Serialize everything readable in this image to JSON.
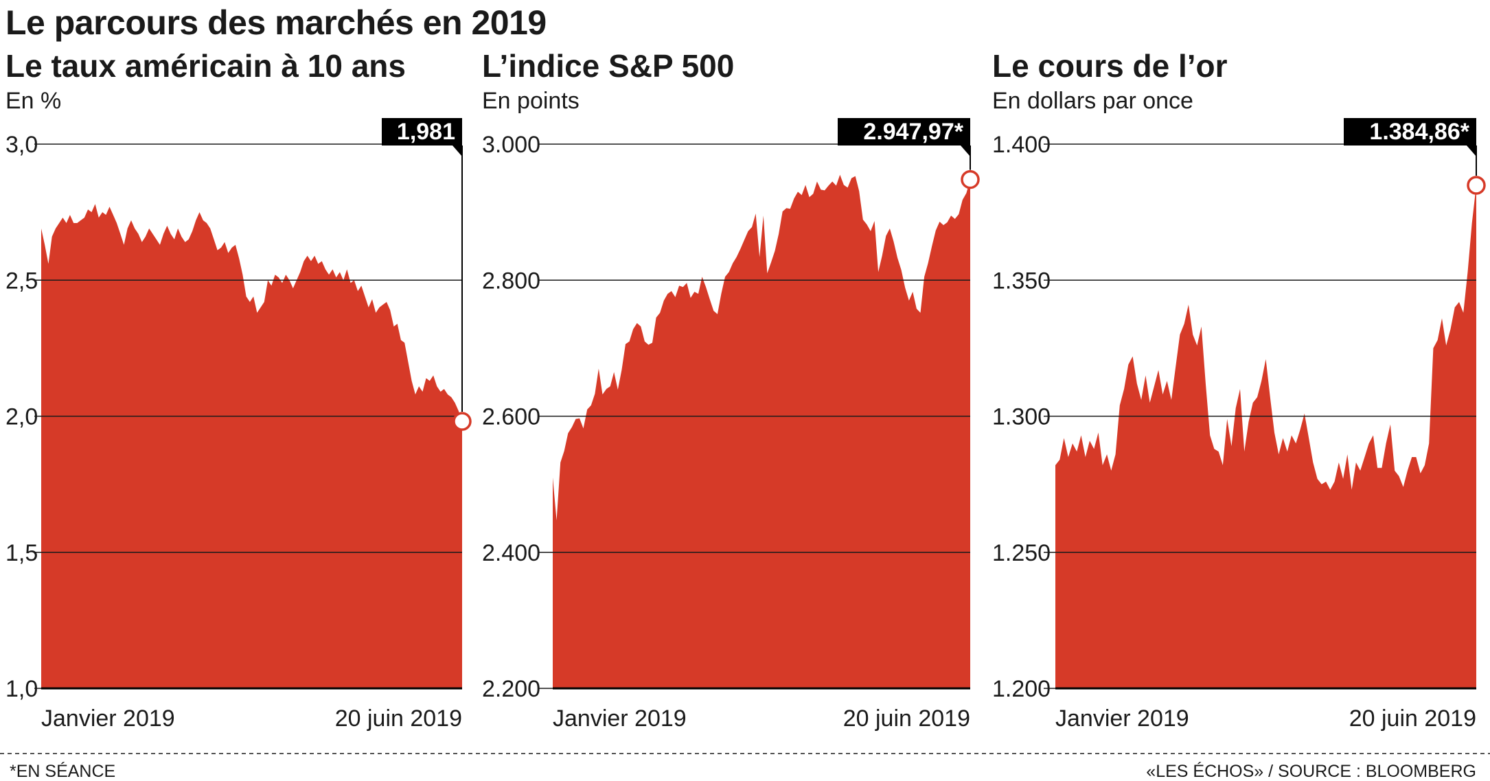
{
  "title": "Le parcours des marchés en 2019",
  "footnote": "*EN SÉANCE",
  "source": "«LES ÉCHOS» / SOURCE : BLOOMBERG",
  "colors": {
    "area": "#d63a28",
    "marker": "#d63a28",
    "badge": "#000000",
    "grid": "#1a1a1a"
  },
  "chart_data": [
    {
      "type": "area",
      "title": "Le taux américain à 10 ans",
      "subtitle": "En %",
      "ylim": [
        1.0,
        3.0
      ],
      "yticks": [
        1.0,
        1.5,
        2.0,
        2.5,
        3.0
      ],
      "ytick_labels": [
        "1,0",
        "1,5",
        "2,0",
        "2,5",
        "3,0"
      ],
      "x_start_label": "Janvier 2019",
      "x_end_label": "20 juin 2019",
      "last_value_label": "1,981",
      "values": [
        2.69,
        2.63,
        2.56,
        2.66,
        2.69,
        2.71,
        2.73,
        2.71,
        2.74,
        2.71,
        2.71,
        2.72,
        2.73,
        2.76,
        2.75,
        2.78,
        2.73,
        2.75,
        2.74,
        2.77,
        2.74,
        2.71,
        2.67,
        2.63,
        2.69,
        2.72,
        2.69,
        2.67,
        2.64,
        2.66,
        2.69,
        2.67,
        2.65,
        2.63,
        2.67,
        2.7,
        2.67,
        2.65,
        2.69,
        2.66,
        2.64,
        2.65,
        2.68,
        2.72,
        2.75,
        2.72,
        2.71,
        2.69,
        2.65,
        2.61,
        2.62,
        2.64,
        2.6,
        2.62,
        2.63,
        2.58,
        2.52,
        2.44,
        2.42,
        2.44,
        2.38,
        2.4,
        2.42,
        2.5,
        2.48,
        2.52,
        2.51,
        2.49,
        2.52,
        2.5,
        2.47,
        2.5,
        2.53,
        2.57,
        2.59,
        2.57,
        2.59,
        2.56,
        2.57,
        2.54,
        2.52,
        2.54,
        2.51,
        2.53,
        2.5,
        2.54,
        2.49,
        2.5,
        2.46,
        2.48,
        2.44,
        2.4,
        2.43,
        2.38,
        2.4,
        2.41,
        2.42,
        2.39,
        2.33,
        2.34,
        2.28,
        2.27,
        2.2,
        2.13,
        2.08,
        2.11,
        2.09,
        2.14,
        2.13,
        2.15,
        2.11,
        2.09,
        2.1,
        2.08,
        2.07,
        2.05,
        2.02,
        1.981
      ]
    },
    {
      "type": "area",
      "title": "L’indice S&P 500",
      "subtitle": "En points",
      "ylim": [
        2200,
        3000
      ],
      "yticks": [
        2200,
        2400,
        2600,
        2800,
        3000
      ],
      "ytick_labels": [
        "2.200",
        "2.400",
        "2.600",
        "2.800",
        "3.000"
      ],
      "x_start_label": "Janvier 2019",
      "x_end_label": "20 juin 2019",
      "last_value_label": "2.947,97*",
      "values": [
        2510,
        2447,
        2532,
        2549,
        2575,
        2584,
        2596,
        2597,
        2582,
        2610,
        2616,
        2633,
        2670,
        2632,
        2640,
        2644,
        2665,
        2639,
        2668,
        2706,
        2710,
        2728,
        2737,
        2732,
        2710,
        2705,
        2708,
        2745,
        2752,
        2770,
        2780,
        2784,
        2775,
        2792,
        2790,
        2796,
        2774,
        2783,
        2780,
        2805,
        2790,
        2772,
        2755,
        2750,
        2780,
        2805,
        2812,
        2825,
        2834,
        2846,
        2859,
        2872,
        2878,
        2898,
        2834,
        2895,
        2810,
        2826,
        2843,
        2868,
        2901,
        2906,
        2905,
        2920,
        2930,
        2925,
        2940,
        2922,
        2927,
        2945,
        2933,
        2932,
        2939,
        2945,
        2939,
        2955,
        2940,
        2936,
        2950,
        2953,
        2931,
        2889,
        2882,
        2872,
        2887,
        2812,
        2836,
        2865,
        2876,
        2857,
        2833,
        2815,
        2789,
        2770,
        2783,
        2758,
        2752,
        2805,
        2825,
        2850,
        2873,
        2886,
        2881,
        2885,
        2895,
        2890,
        2897,
        2918,
        2928,
        2947.97
      ]
    },
    {
      "type": "area",
      "title": "Le cours de l’or",
      "subtitle": "En dollars par once",
      "ylim": [
        1200,
        1400
      ],
      "yticks": [
        1200,
        1250,
        1300,
        1350,
        1400
      ],
      "ytick_labels": [
        "1.200",
        "1.250",
        "1.300",
        "1.350",
        "1.400"
      ],
      "x_start_label": "Janvier 2019",
      "x_end_label": "20 juin 2019",
      "last_value_label": "1.384,86*",
      "values": [
        1282,
        1284,
        1292,
        1285,
        1290,
        1287,
        1293,
        1285,
        1291,
        1288,
        1294,
        1282,
        1286,
        1280,
        1286,
        1304,
        1310,
        1319,
        1322,
        1312,
        1306,
        1315,
        1305,
        1311,
        1317,
        1308,
        1313,
        1306,
        1318,
        1330,
        1334,
        1341,
        1330,
        1326,
        1333,
        1312,
        1293,
        1288,
        1287,
        1282,
        1299,
        1289,
        1303,
        1310,
        1287,
        1298,
        1305,
        1307,
        1313,
        1321,
        1307,
        1294,
        1286,
        1292,
        1287,
        1293,
        1290,
        1295,
        1301,
        1292,
        1283,
        1277,
        1275,
        1276,
        1273,
        1276,
        1283,
        1277,
        1286,
        1273,
        1283,
        1280,
        1285,
        1290,
        1293,
        1281,
        1281,
        1290,
        1297,
        1280,
        1278,
        1274,
        1280,
        1285,
        1285,
        1279,
        1282,
        1290,
        1325,
        1328,
        1336,
        1326,
        1332,
        1340,
        1342,
        1338,
        1353,
        1371,
        1384.86
      ]
    }
  ]
}
